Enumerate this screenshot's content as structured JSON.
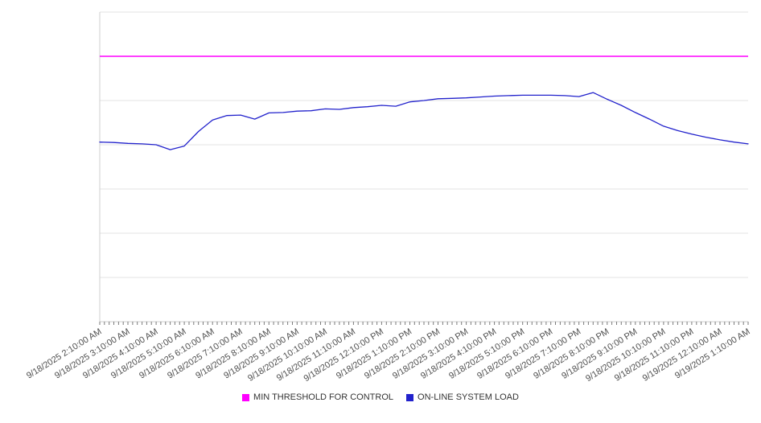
{
  "chart_data": {
    "type": "line",
    "title": "",
    "xlabel": "",
    "ylabel": "",
    "grid": true,
    "legend_position": "bottom",
    "ylim": [
      0,
      700
    ],
    "y_gridline_step": 100,
    "y_axis_labels_visible": false,
    "x_axis": {
      "minor_tick_interval_minutes": 10,
      "label_rotation_degrees": -32
    },
    "x_tick_labels": [
      "9/18/2025 2:10:00 AM",
      "9/18/2025 3:10:00 AM",
      "9/18/2025 4:10:00 AM",
      "9/18/2025 5:10:00 AM",
      "9/18/2025 6:10:00 AM",
      "9/18/2025 7:10:00 AM",
      "9/18/2025 8:10:00 AM",
      "9/18/2025 9:10:00 AM",
      "9/18/2025 10:10:00 AM",
      "9/18/2025 11:10:00 AM",
      "9/18/2025 12:10:00 PM",
      "9/18/2025 1:10:00 PM",
      "9/18/2025 2:10:00 PM",
      "9/18/2025 3:10:00 PM",
      "9/18/2025 4:10:00 PM",
      "9/18/2025 5:10:00 PM",
      "9/18/2025 6:10:00 PM",
      "9/18/2025 7:10:00 PM",
      "9/18/2025 8:10:00 PM",
      "9/18/2025 9:10:00 PM",
      "9/18/2025 10:10:00 PM",
      "9/18/2025 11:10:00 PM",
      "9/19/2025 12:10:00 AM",
      "9/19/2025 1:10:00 AM"
    ],
    "series": [
      {
        "name": "MIN THRESHOLD FOR CONTROL",
        "color": "#ff00ff",
        "kind": "constant",
        "value": 600
      },
      {
        "name": "ON-LINE SYSTEM LOAD",
        "color": "#2222cc",
        "kind": "sampled",
        "x_start_hour": 0,
        "sample_interval_hours": 0.5,
        "values": [
          406,
          405,
          403,
          402,
          400,
          389,
          397,
          430,
          456,
          466,
          467,
          458,
          472,
          473,
          476,
          477,
          481,
          480,
          484,
          486,
          489,
          487,
          497,
          500,
          504,
          505,
          506,
          508,
          510,
          511,
          512,
          512,
          512,
          511,
          509,
          518,
          503,
          489,
          473,
          458,
          442,
          432,
          424,
          417,
          411,
          406,
          402
        ]
      }
    ]
  }
}
